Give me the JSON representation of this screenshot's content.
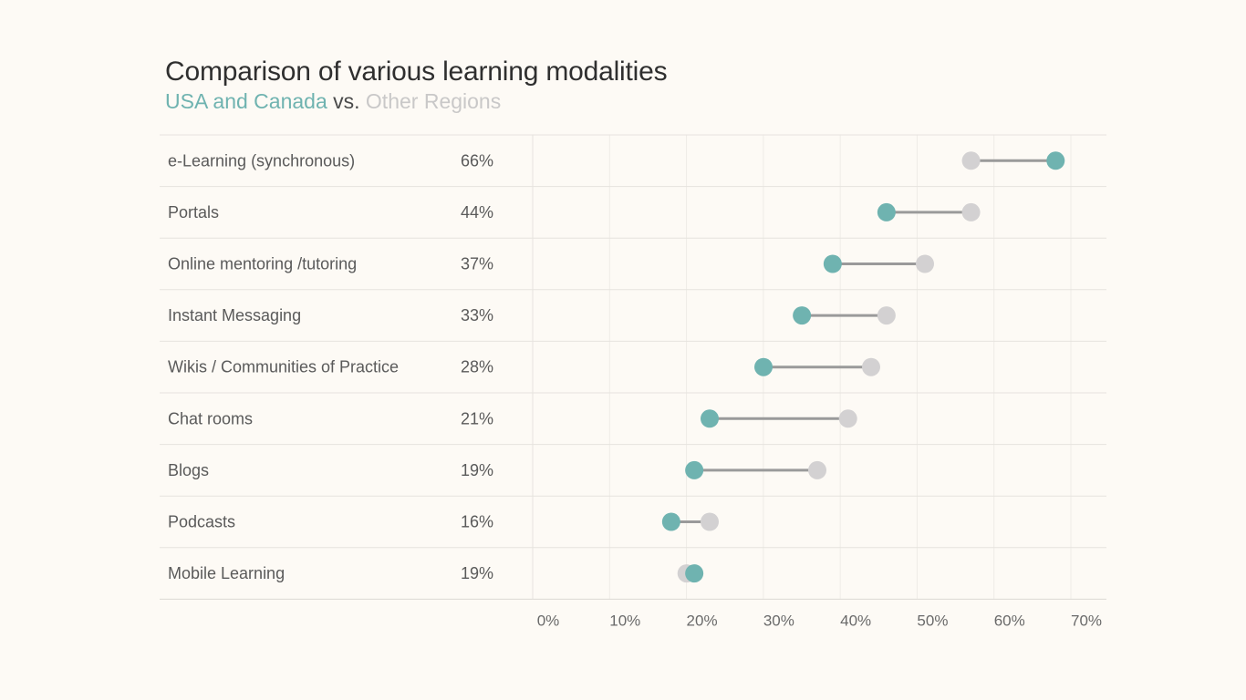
{
  "chart_data": {
    "type": "dumbbell",
    "title": "Comparison of various learning modalities",
    "subtitle": {
      "series_a": "USA and Canada",
      "separator": "vs.",
      "series_b": "Other Regions"
    },
    "series": [
      {
        "name": "USA and Canada",
        "color": "#6fb3b0"
      },
      {
        "name": "Other Regions",
        "color": "#d3d1d2"
      }
    ],
    "categories": [
      "e-Learning (synchronous)",
      "Portals",
      "Online mentoring /tutoring",
      "Instant Messaging",
      "Wikis / Communities of Practice",
      "Chat rooms",
      "Blogs",
      "Podcasts",
      "Mobile Learning"
    ],
    "value_labels": [
      "66%",
      "44%",
      "37%",
      "33%",
      "28%",
      "21%",
      "19%",
      "16%",
      "19%"
    ],
    "usa_canada": [
      66,
      44,
      37,
      33,
      28,
      21,
      19,
      16,
      19
    ],
    "other_regions": [
      55,
      55,
      49,
      44,
      42,
      39,
      35,
      21,
      18
    ],
    "xlim": [
      0,
      70
    ],
    "x_ticks": [
      0,
      10,
      20,
      30,
      40,
      50,
      60,
      70
    ],
    "x_tick_labels": [
      "0%",
      "10%",
      "20%",
      "30%",
      "40%",
      "50%",
      "60%",
      "70%"
    ],
    "connector_color": "#9a9a9a",
    "grid": true
  }
}
